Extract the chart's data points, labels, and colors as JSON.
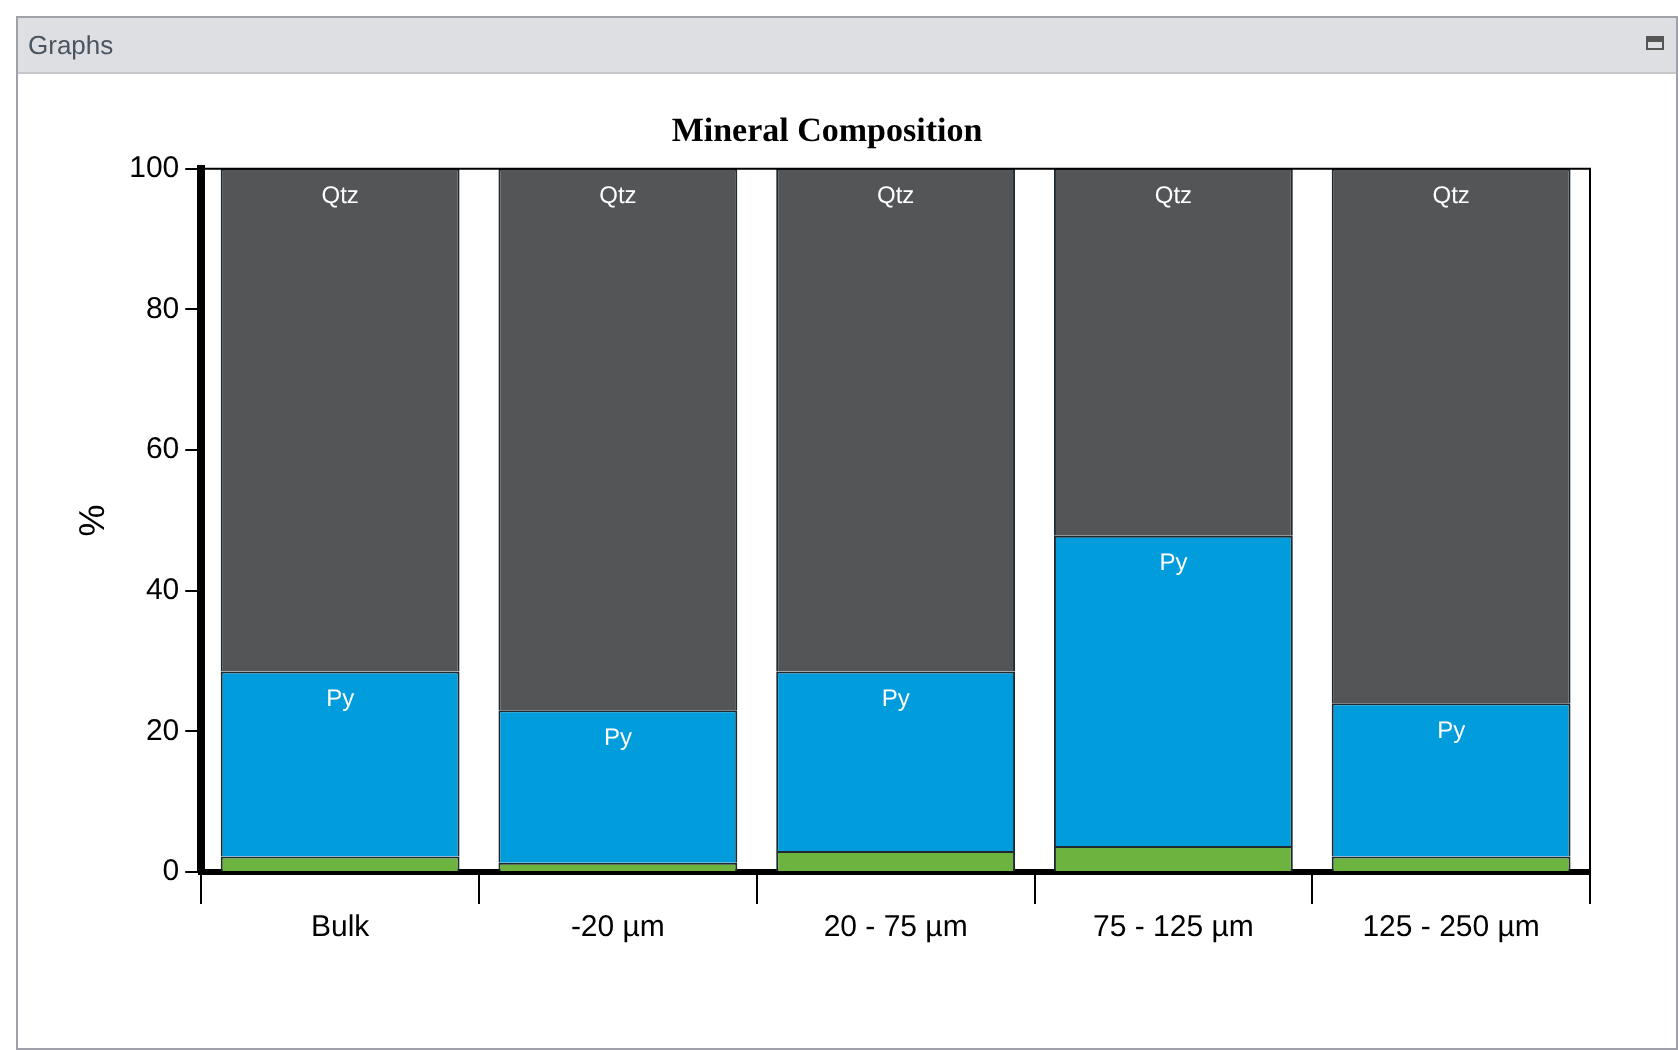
{
  "chart_data": {
    "type": "bar",
    "title": "Mineral Composition",
    "ylabel": "%",
    "annotations": [
      "Graphs"
    ],
    "categories": [
      "Bulk",
      "-20 µm",
      "20 - 75 µm",
      "75 - 125 µm",
      "125 - 250 µm"
    ],
    "stacked": true,
    "ylim": [
      0,
      100
    ],
    "yticks": [
      0,
      20,
      40,
      60,
      80,
      100
    ],
    "grid": false,
    "legend": false,
    "series": [
      {
        "color": "#6db33f",
        "values": [
          2.2,
          1.3,
          3.0,
          3.7,
          2.2
        ]
      },
      {
        "name": "Py",
        "color": "#009cdb",
        "values": [
          26.3,
          21.7,
          25.5,
          44.1,
          21.8
        ]
      },
      {
        "name": "Qtz",
        "color": "#545557",
        "values": [
          71.5,
          77.0,
          71.5,
          52.2,
          76.0
        ]
      }
    ]
  }
}
